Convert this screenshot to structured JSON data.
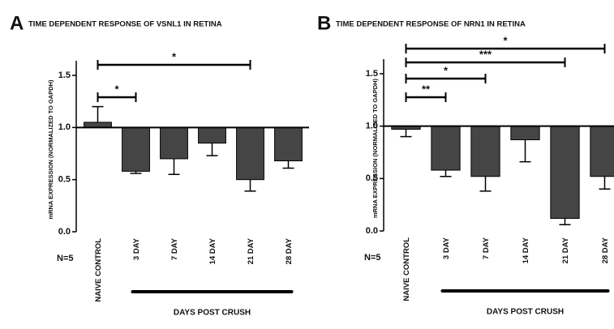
{
  "chart_data": [
    {
      "type": "bar",
      "panel": "A",
      "title": "TIME DEPENDENT RESPONSE OF VSNL1 IN RETINA",
      "ylabel": "mRNA EXPRESSION (NORMALIZED TO GAPDH)",
      "xlabel": "DAYS POST CRUSH",
      "note": "N=5",
      "categories": [
        "NAIVE CONTROL",
        "3 DAY",
        "7 DAY",
        "14 DAY",
        "21 DAY",
        "28 DAY"
      ],
      "values": [
        1.05,
        0.58,
        0.7,
        0.85,
        0.5,
        0.68
      ],
      "errors": [
        0.15,
        0.02,
        0.15,
        0.12,
        0.11,
        0.07
      ],
      "baseline": 1,
      "color": "#454545",
      "ylim": [
        0,
        1.5
      ],
      "yticks": [
        {
          "value": 0,
          "label": "0.0"
        },
        {
          "value": 0.5,
          "label": "0.5"
        },
        {
          "value": 1,
          "label": "1.0"
        },
        {
          "value": 1.5,
          "label": "1.5"
        }
      ],
      "brackets": [
        {
          "label": "*",
          "between": [
            0,
            1
          ]
        },
        {
          "label": "*",
          "between": [
            0,
            4
          ]
        }
      ]
    },
    {
      "type": "bar",
      "panel": "B",
      "title": "TIME DEPENDENT RESPONSE OF NRN1 IN RETINA",
      "ylabel": "mRNA EXPRESSION (NORMALIZED TO GAPDH)",
      "xlabel": "DAYS POST CRUSH",
      "note": "N=5",
      "categories": [
        "NAIVE CONTROL",
        "3 DAY",
        "7 DAY",
        "14 DAY",
        "21 DAY",
        "28 DAY"
      ],
      "values": [
        0.97,
        0.58,
        0.52,
        0.87,
        0.12,
        0.52
      ],
      "errors": [
        0.07,
        0.06,
        0.14,
        0.21,
        0.06,
        0.12
      ],
      "baseline": 1,
      "color": "#454545",
      "ylim": [
        0,
        1.5
      ],
      "yticks": [
        {
          "value": 0,
          "label": "0.0"
        },
        {
          "value": 0.5,
          "label": "0.5"
        },
        {
          "value": 1,
          "label": "1.0"
        },
        {
          "value": 1.5,
          "label": "1.5"
        }
      ],
      "brackets": [
        {
          "label": "**",
          "between": [
            0,
            1
          ]
        },
        {
          "label": "*",
          "between": [
            0,
            2
          ]
        },
        {
          "label": "***",
          "between": [
            0,
            4
          ]
        },
        {
          "label": "*",
          "between": [
            0,
            5
          ]
        }
      ]
    }
  ]
}
